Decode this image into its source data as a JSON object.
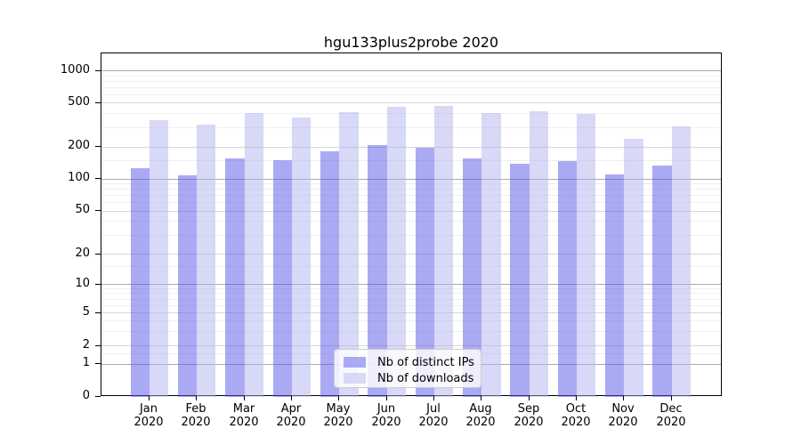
{
  "chart_data": {
    "type": "bar",
    "title": "hgu133plus2probe 2020",
    "months": [
      "Jan",
      "Feb",
      "Mar",
      "Apr",
      "May",
      "Jun",
      "Jul",
      "Aug",
      "Sep",
      "Oct",
      "Nov",
      "Dec"
    ],
    "year": "2020",
    "series": [
      {
        "name": "Nb of distinct IPs",
        "color": "#aaaaf4",
        "values": [
          127,
          108,
          157,
          150,
          184,
          210,
          197,
          157,
          138,
          148,
          110,
          134
        ]
      },
      {
        "name": "Nb of downloads",
        "color": "#d8d8f7",
        "values": [
          352,
          320,
          404,
          372,
          410,
          460,
          465,
          405,
          418,
          396,
          238,
          307
        ]
      }
    ],
    "yscale": "log-like (0,1 linear then logarithmic)",
    "yticks": [
      0,
      1,
      2,
      5,
      10,
      20,
      50,
      100,
      200,
      500,
      1000
    ],
    "minor_gridlines": [
      1.5,
      3,
      4,
      6,
      7,
      8,
      9,
      15,
      30,
      40,
      60,
      70,
      80,
      90,
      150,
      300,
      400,
      600,
      700,
      800,
      900
    ],
    "ylim": [
      0,
      1450
    ],
    "grid": true,
    "legend_position": "lower center",
    "colors": {
      "axis": "#000000",
      "gridline_major": "#ababab",
      "gridline_mid": "#d6d6d6",
      "gridline_minor": "#efefef"
    }
  }
}
